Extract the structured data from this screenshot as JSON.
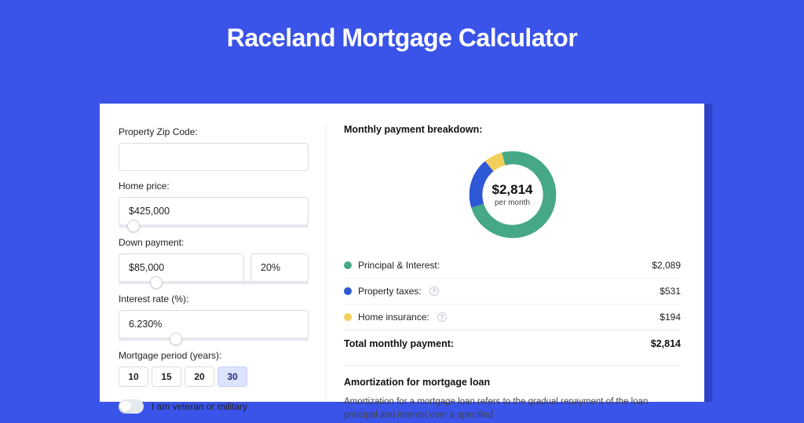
{
  "page": {
    "background_color": "#3a53e8",
    "panel_shadow_color": "#2c41c7",
    "title": "Raceland Mortgage Calculator",
    "title_color": "#ffffff",
    "title_fontsize": 32
  },
  "form": {
    "zip_label": "Property Zip Code:",
    "zip_value": "",
    "home_price_label": "Home price:",
    "home_price_value": "$425,000",
    "home_price_slider_pct": 8,
    "down_payment_label": "Down payment:",
    "down_payment_value": "$85,000",
    "down_payment_pct": "20%",
    "down_payment_slider_pct": 20,
    "interest_label": "Interest rate (%):",
    "interest_value": "6.230%",
    "interest_slider_pct": 30,
    "period_label": "Mortgage period (years):",
    "periods": [
      {
        "label": "10",
        "selected": false
      },
      {
        "label": "15",
        "selected": false
      },
      {
        "label": "20",
        "selected": false
      },
      {
        "label": "30",
        "selected": true
      }
    ],
    "veteran_label": "I am veteran or military",
    "veteran_on": false
  },
  "breakdown": {
    "title": "Monthly payment breakdown:",
    "center_amount": "$2,814",
    "center_sub": "per month",
    "donut": {
      "type": "donut",
      "size": 124,
      "thickness_ratio": 0.27,
      "background_color": "#ffffff",
      "start_angle_deg": -15,
      "slices": [
        {
          "name": "principal_interest",
          "value": 2089,
          "pct": 74.2,
          "color": "#46a886"
        },
        {
          "name": "property_taxes",
          "value": 531,
          "pct": 18.9,
          "color": "#2f58d6"
        },
        {
          "name": "home_insurance",
          "value": 194,
          "pct": 6.9,
          "color": "#f2cf5a"
        }
      ]
    },
    "legend": [
      {
        "label": "Principal & Interest:",
        "color": "#46a886",
        "value": "$2,089",
        "has_help": false
      },
      {
        "label": "Property taxes:",
        "color": "#2f58d6",
        "value": "$531",
        "has_help": true
      },
      {
        "label": "Home insurance:",
        "color": "#f2cf5a",
        "value": "$194",
        "has_help": true
      }
    ],
    "total_label": "Total monthly payment:",
    "total_value": "$2,814"
  },
  "amortization": {
    "title": "Amortization for mortgage loan",
    "body": "Amortization for a mortgage loan refers to the gradual repayment of the loan principal and interest over a specified"
  }
}
